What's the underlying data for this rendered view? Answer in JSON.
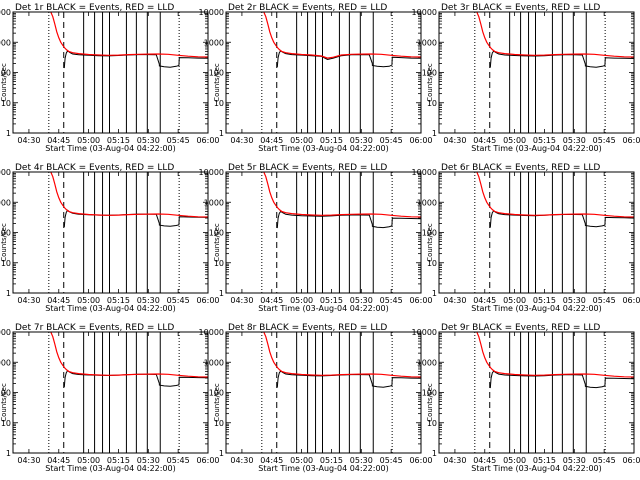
{
  "figure": {
    "background": "#ffffff"
  },
  "chart_data": {
    "type": "line",
    "shared": {
      "x_ticks": [
        "04:30",
        "04:45",
        "05:00",
        "05:15",
        "05:30",
        "05:45",
        "06:00"
      ],
      "x_tick_minutes": [
        30,
        45,
        60,
        75,
        90,
        105,
        120
      ],
      "x_range_minutes": [
        22,
        120
      ],
      "xlabel": "Start Time (03-Aug-04 04:22:00)",
      "ylabel": "Counts/sec",
      "y_scale": "log",
      "ylim": [
        1,
        10000
      ],
      "y_ticks": [
        "1",
        "10",
        "100",
        "1000",
        "10000"
      ],
      "grid": false,
      "series_colors": {
        "events": "#000000",
        "lld": "#ff0000"
      },
      "dotted_vlines_minutes": [
        40,
        105.5
      ],
      "dashed_vline_minutes": 47.5,
      "solid_vlines_minutes": [
        57.5,
        63,
        67,
        70.5,
        79,
        84,
        89.5,
        96
      ]
    },
    "panels": [
      {
        "title": "Det 1r BLACK = Events, RED = LLD",
        "events": {
          "x": [
            47.8,
            48.2,
            48.8,
            49.5,
            50.5,
            52,
            55,
            60,
            65,
            70,
            75,
            80,
            85,
            90,
            94,
            95.5,
            95.6,
            98,
            101,
            104,
            105.4,
            105.6,
            110,
            115,
            120
          ],
          "y": [
            140,
            300,
            440,
            520,
            460,
            410,
            385,
            370,
            360,
            355,
            365,
            380,
            390,
            390,
            385,
            190,
            165,
            155,
            150,
            160,
            170,
            310,
            305,
            300,
            295
          ]
        },
        "lld": {
          "x": [
            41,
            42,
            43,
            44,
            45,
            46,
            47,
            48,
            49,
            50,
            52,
            55,
            60,
            65,
            70,
            75,
            80,
            85,
            90,
            95,
            100,
            105,
            110,
            115,
            120
          ],
          "y": [
            10000,
            7000,
            4000,
            2200,
            1400,
            1000,
            800,
            650,
            560,
            500,
            450,
            420,
            395,
            380,
            370,
            375,
            390,
            400,
            405,
            410,
            400,
            370,
            345,
            330,
            325
          ]
        }
      },
      {
        "title": "Det 2r BLACK = Events, RED = LLD",
        "events": {
          "x": [
            47.8,
            48.2,
            48.8,
            49.5,
            50.5,
            52,
            55,
            60,
            65,
            70,
            73,
            76,
            80,
            85,
            90,
            94,
            95.5,
            95.6,
            98,
            101,
            104,
            105.4,
            105.6,
            110,
            115,
            120
          ],
          "y": [
            150,
            310,
            450,
            520,
            470,
            420,
            390,
            375,
            360,
            340,
            270,
            300,
            360,
            385,
            390,
            385,
            200,
            170,
            160,
            155,
            160,
            175,
            320,
            310,
            300,
            295
          ]
        },
        "lld": {
          "x": [
            41,
            42,
            43,
            44,
            45,
            46,
            47,
            48,
            49,
            50,
            52,
            55,
            60,
            65,
            70,
            73,
            76,
            80,
            85,
            90,
            95,
            100,
            105,
            110,
            115,
            120
          ],
          "y": [
            10000,
            7000,
            4000,
            2200,
            1400,
            1000,
            800,
            650,
            560,
            500,
            450,
            420,
            395,
            380,
            350,
            300,
            320,
            380,
            400,
            405,
            410,
            400,
            370,
            345,
            330,
            325
          ]
        }
      },
      {
        "title": "Det 3r BLACK = Events, RED = LLD",
        "events": {
          "x": [
            47.8,
            48.2,
            48.8,
            49.5,
            50.5,
            52,
            55,
            60,
            65,
            70,
            75,
            80,
            85,
            90,
            94,
            95.5,
            95.6,
            98,
            101,
            104,
            105.4,
            105.6,
            110,
            115,
            120
          ],
          "y": [
            145,
            300,
            440,
            510,
            460,
            410,
            380,
            365,
            355,
            350,
            360,
            375,
            385,
            385,
            380,
            190,
            165,
            155,
            150,
            160,
            170,
            305,
            300,
            295,
            290
          ]
        },
        "lld": {
          "x": [
            41,
            42,
            43,
            44,
            45,
            46,
            47,
            48,
            49,
            50,
            52,
            55,
            60,
            65,
            70,
            75,
            80,
            85,
            90,
            95,
            100,
            105,
            110,
            115,
            120
          ],
          "y": [
            10000,
            7000,
            4000,
            2200,
            1400,
            1000,
            800,
            650,
            560,
            500,
            450,
            420,
            395,
            380,
            370,
            375,
            390,
            400,
            405,
            410,
            400,
            370,
            345,
            330,
            325
          ]
        }
      },
      {
        "title": "Det 4r BLACK = Events, RED = LLD",
        "events": {
          "x": [
            47.8,
            48.2,
            48.8,
            49.5,
            50.5,
            52,
            55,
            60,
            65,
            70,
            75,
            80,
            85,
            90,
            94,
            95.5,
            95.6,
            98,
            101,
            104,
            105.4,
            105.6,
            110,
            115,
            120
          ],
          "y": [
            150,
            320,
            470,
            540,
            480,
            430,
            400,
            385,
            375,
            370,
            380,
            395,
            405,
            405,
            400,
            200,
            175,
            165,
            160,
            170,
            180,
            330,
            325,
            320,
            315
          ]
        },
        "lld": {
          "x": [
            41,
            42,
            43,
            44,
            45,
            46,
            47,
            48,
            49,
            50,
            52,
            55,
            60,
            65,
            70,
            75,
            80,
            85,
            90,
            95,
            100,
            105,
            110,
            115,
            120
          ],
          "y": [
            10000,
            7000,
            4000,
            2200,
            1400,
            1000,
            800,
            650,
            560,
            500,
            450,
            420,
            395,
            380,
            370,
            375,
            390,
            400,
            405,
            410,
            400,
            370,
            345,
            330,
            325
          ]
        }
      },
      {
        "title": "Det 5r BLACK = Events, RED = LLD",
        "events": {
          "x": [
            47.8,
            48.2,
            48.8,
            49.5,
            50.5,
            52,
            55,
            60,
            65,
            70,
            75,
            80,
            85,
            90,
            94,
            95.5,
            95.6,
            98,
            101,
            104,
            105.4,
            105.6,
            110,
            115,
            120
          ],
          "y": [
            140,
            300,
            430,
            500,
            450,
            400,
            375,
            360,
            350,
            345,
            355,
            370,
            380,
            380,
            375,
            185,
            160,
            150,
            145,
            155,
            165,
            300,
            295,
            290,
            285
          ]
        },
        "lld": {
          "x": [
            41,
            42,
            43,
            44,
            45,
            46,
            47,
            48,
            49,
            50,
            52,
            55,
            60,
            65,
            70,
            75,
            80,
            85,
            90,
            95,
            100,
            105,
            110,
            115,
            120
          ],
          "y": [
            10000,
            7000,
            4000,
            2200,
            1400,
            1000,
            800,
            650,
            560,
            500,
            450,
            420,
            395,
            380,
            370,
            375,
            390,
            400,
            405,
            410,
            400,
            370,
            345,
            330,
            325
          ]
        }
      },
      {
        "title": "Det 6r BLACK = Events, RED = LLD",
        "events": {
          "x": [
            47.8,
            48.2,
            48.8,
            49.5,
            50.5,
            52,
            55,
            60,
            65,
            70,
            75,
            80,
            85,
            90,
            94,
            95.5,
            95.6,
            98,
            101,
            104,
            105.4,
            105.6,
            110,
            115,
            120
          ],
          "y": [
            145,
            310,
            450,
            520,
            465,
            415,
            390,
            375,
            365,
            360,
            370,
            385,
            395,
            395,
            390,
            195,
            170,
            160,
            155,
            165,
            175,
            315,
            310,
            305,
            300
          ]
        },
        "lld": {
          "x": [
            41,
            42,
            43,
            44,
            45,
            46,
            47,
            48,
            49,
            50,
            52,
            55,
            60,
            65,
            70,
            75,
            80,
            85,
            90,
            95,
            100,
            105,
            110,
            115,
            120
          ],
          "y": [
            10000,
            7000,
            4000,
            2200,
            1400,
            1000,
            800,
            650,
            560,
            500,
            450,
            420,
            395,
            380,
            370,
            375,
            390,
            400,
            405,
            410,
            400,
            370,
            345,
            330,
            325
          ]
        }
      },
      {
        "title": "Det 7r BLACK = Events, RED = LLD",
        "events": {
          "x": [
            47.8,
            48.2,
            48.8,
            49.5,
            50.5,
            52,
            55,
            60,
            65,
            70,
            75,
            80,
            85,
            90,
            94,
            95.5,
            95.6,
            98,
            101,
            104,
            105.4,
            105.6,
            110,
            115,
            120
          ],
          "y": [
            150,
            315,
            455,
            525,
            470,
            420,
            395,
            380,
            370,
            365,
            375,
            390,
            400,
            400,
            395,
            200,
            175,
            165,
            160,
            170,
            180,
            320,
            315,
            310,
            305
          ]
        },
        "lld": {
          "x": [
            41,
            42,
            43,
            44,
            45,
            46,
            47,
            48,
            49,
            50,
            52,
            55,
            60,
            65,
            70,
            75,
            80,
            85,
            90,
            95,
            100,
            105,
            110,
            115,
            120
          ],
          "y": [
            10000,
            7000,
            4000,
            2200,
            1400,
            1000,
            800,
            650,
            560,
            500,
            450,
            420,
            395,
            380,
            370,
            375,
            390,
            400,
            405,
            410,
            400,
            370,
            345,
            330,
            325
          ]
        }
      },
      {
        "title": "Det 8r BLACK = Events, RED = LLD",
        "events": {
          "x": [
            47.8,
            48.2,
            48.8,
            49.5,
            50.5,
            52,
            55,
            60,
            65,
            70,
            75,
            80,
            85,
            90,
            94,
            95.5,
            95.6,
            98,
            101,
            104,
            105.4,
            105.6,
            110,
            115,
            120
          ],
          "y": [
            145,
            305,
            445,
            515,
            460,
            410,
            385,
            370,
            360,
            355,
            365,
            380,
            390,
            390,
            385,
            190,
            165,
            155,
            150,
            160,
            170,
            310,
            305,
            300,
            295
          ]
        },
        "lld": {
          "x": [
            41,
            42,
            43,
            44,
            45,
            46,
            47,
            48,
            49,
            50,
            52,
            55,
            60,
            65,
            70,
            75,
            80,
            85,
            90,
            95,
            100,
            105,
            110,
            115,
            120
          ],
          "y": [
            10000,
            7000,
            4000,
            2200,
            1400,
            1000,
            800,
            650,
            560,
            500,
            450,
            420,
            395,
            380,
            370,
            375,
            390,
            400,
            405,
            410,
            400,
            370,
            345,
            330,
            325
          ]
        }
      },
      {
        "title": "Det 9r BLACK = Events, RED = LLD",
        "events": {
          "x": [
            47.8,
            48.2,
            48.8,
            49.5,
            50.5,
            52,
            55,
            60,
            65,
            70,
            75,
            80,
            85,
            90,
            94,
            95.5,
            95.6,
            98,
            101,
            104,
            105.4,
            105.6,
            110,
            115,
            120
          ],
          "y": [
            140,
            300,
            440,
            510,
            455,
            405,
            380,
            365,
            355,
            350,
            360,
            375,
            385,
            385,
            380,
            185,
            160,
            150,
            145,
            155,
            165,
            300,
            295,
            290,
            285
          ]
        },
        "lld": {
          "x": [
            41,
            42,
            43,
            44,
            45,
            46,
            47,
            48,
            49,
            50,
            52,
            55,
            60,
            65,
            70,
            75,
            80,
            85,
            90,
            95,
            100,
            105,
            110,
            115,
            120
          ],
          "y": [
            10000,
            7000,
            4000,
            2200,
            1400,
            1000,
            800,
            650,
            560,
            500,
            450,
            420,
            395,
            380,
            370,
            375,
            390,
            400,
            405,
            410,
            400,
            370,
            345,
            330,
            325
          ]
        }
      }
    ]
  }
}
